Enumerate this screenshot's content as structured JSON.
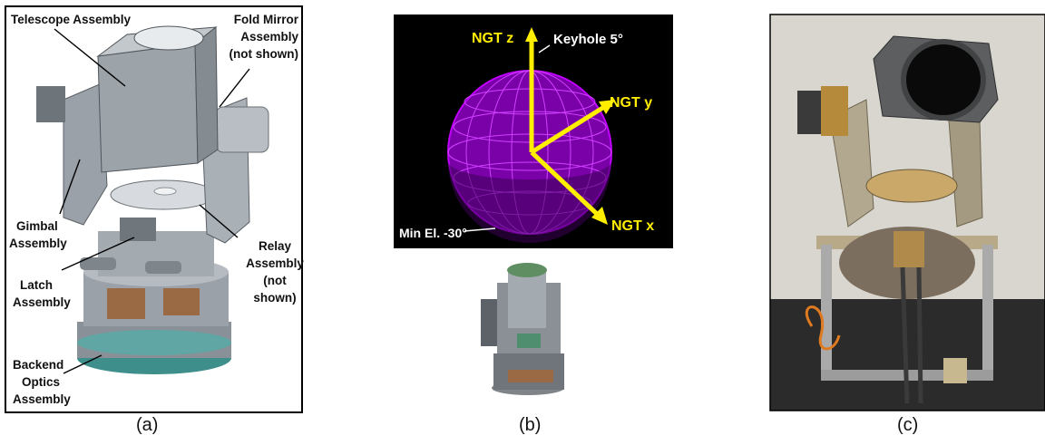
{
  "panel_a": {
    "caption": "(a)",
    "labels": {
      "telescope": "Telescope Assembly",
      "fold_mirror": [
        "Fold Mirror",
        "Assembly",
        "(not shown)"
      ],
      "gimbal": [
        "Gimbal",
        "Assembly"
      ],
      "relay": [
        "Relay",
        "Assembly",
        "(not",
        "shown)"
      ],
      "latch": [
        "Latch",
        "Assembly"
      ],
      "backend": [
        "Backend",
        "Optics",
        "Assembly"
      ]
    }
  },
  "panel_b": {
    "caption": "(b)",
    "labels": {
      "z_axis": "NGT z",
      "y_axis": "NGT y",
      "x_axis": "NGT x",
      "keyhole": "Keyhole 5°",
      "min_el": "Min El. -30°"
    },
    "colors": {
      "sphere": "#c000ff",
      "axis": "#ffee00",
      "background": "#000000"
    }
  },
  "panel_c": {
    "caption": "(c)"
  }
}
